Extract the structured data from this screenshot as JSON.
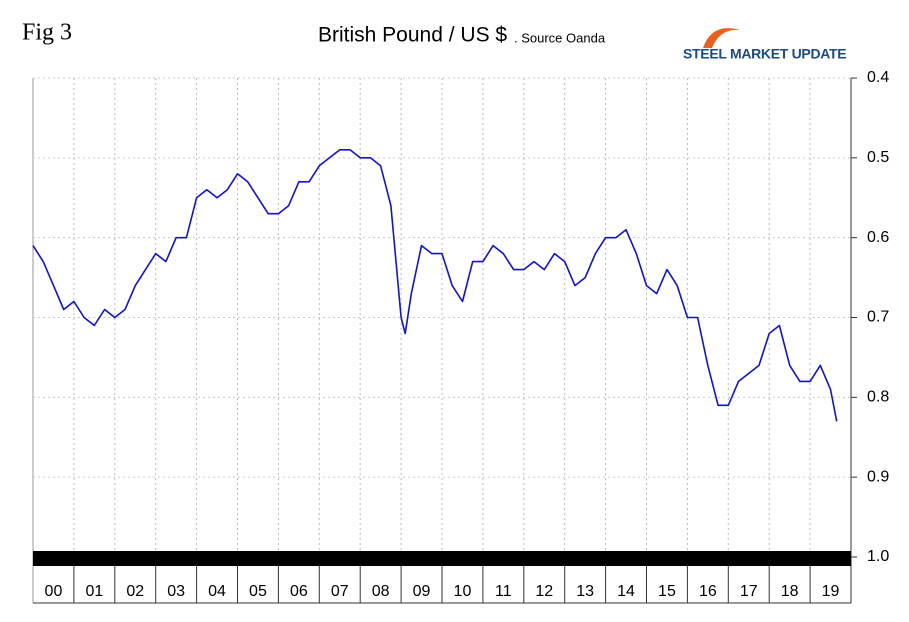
{
  "chart_data": {
    "type": "line",
    "figure_label": "Fig 3",
    "title": "British Pound / US $",
    "subtitle": ". Source Oanda",
    "logo": "STEEL MARKET UPDATE",
    "categories": [
      "00",
      "01",
      "02",
      "03",
      "04",
      "05",
      "06",
      "07",
      "08",
      "09",
      "10",
      "11",
      "12",
      "13",
      "14",
      "15",
      "16",
      "17",
      "18",
      "19"
    ],
    "xlim": [
      0,
      20
    ],
    "ylim": [
      0.4,
      1.0
    ],
    "y_inverted": true,
    "yticks": [
      0.4,
      0.5,
      0.6,
      0.7,
      0.8,
      0.9,
      {
        "value": 1,
        "label": "1.0"
      }
    ],
    "grid": true,
    "series": [
      {
        "color": "#1010e0",
        "x": [
          0,
          0.25,
          0.5,
          0.75,
          1,
          1.25,
          1.5,
          1.75,
          2,
          2.25,
          2.5,
          2.75,
          3,
          3.25,
          3.5,
          3.75,
          4,
          4.25,
          4.5,
          4.75,
          5,
          5.25,
          5.5,
          5.75,
          6,
          6.25,
          6.5,
          6.75,
          7,
          7.25,
          7.5,
          7.75,
          8,
          8.25,
          8.5,
          8.75,
          9,
          9.1,
          9.25,
          9.5,
          9.75,
          10,
          10.25,
          10.5,
          10.75,
          11,
          11.25,
          11.5,
          11.75,
          12,
          12.25,
          12.5,
          12.75,
          13,
          13.25,
          13.5,
          13.75,
          14,
          14.25,
          14.5,
          14.75,
          15,
          15.25,
          15.5,
          15.75,
          16,
          16.25,
          16.5,
          16.75,
          17,
          17.25,
          17.5,
          17.75,
          18,
          18.25,
          18.5,
          18.75,
          19,
          19.25,
          19.5,
          19.65
        ],
        "values": [
          0.61,
          0.63,
          0.66,
          0.69,
          0.68,
          0.7,
          0.71,
          0.69,
          0.7,
          0.69,
          0.66,
          0.64,
          0.62,
          0.63,
          0.6,
          0.6,
          0.55,
          0.54,
          0.55,
          0.54,
          0.52,
          0.53,
          0.55,
          0.57,
          0.57,
          0.56,
          0.53,
          0.53,
          0.51,
          0.5,
          0.49,
          0.49,
          0.5,
          0.5,
          0.51,
          0.56,
          0.7,
          0.72,
          0.67,
          0.61,
          0.62,
          0.62,
          0.66,
          0.68,
          0.63,
          0.63,
          0.61,
          0.62,
          0.64,
          0.64,
          0.63,
          0.64,
          0.62,
          0.63,
          0.66,
          0.65,
          0.62,
          0.6,
          0.6,
          0.59,
          0.62,
          0.66,
          0.67,
          0.64,
          0.66,
          0.7,
          0.7,
          0.76,
          0.81,
          0.81,
          0.78,
          0.77,
          0.76,
          0.72,
          0.71,
          0.76,
          0.78,
          0.78,
          0.76,
          0.79,
          0.83
        ]
      }
    ]
  }
}
